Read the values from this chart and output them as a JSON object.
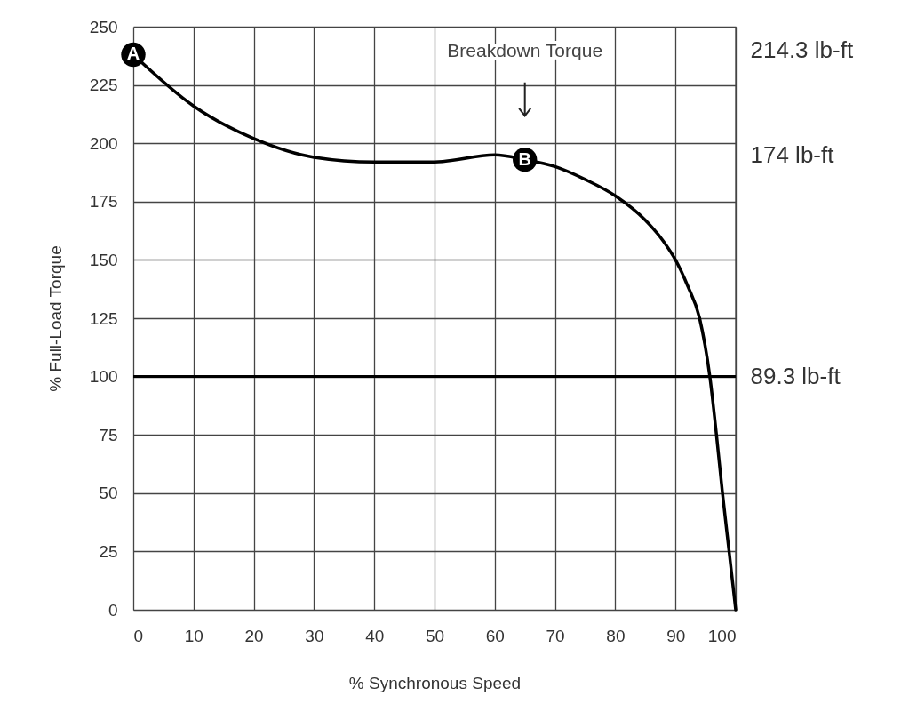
{
  "chart_data": {
    "type": "line",
    "xlabel": "% Synchronous Speed",
    "ylabel": "% Full-Load Torque",
    "x": [
      0,
      10,
      20,
      30,
      40,
      50,
      60,
      65,
      70,
      75,
      80,
      85,
      88,
      90,
      92,
      94,
      95.7,
      96.8,
      97.8,
      98.9,
      100
    ],
    "series": [
      {
        "color": "#000000",
        "values": [
          238,
          216,
          202,
          194,
          192,
          192,
          195,
          193,
          190,
          184.5,
          177.5,
          167,
          158,
          150,
          139,
          125,
          100,
          75,
          50,
          25,
          0
        ]
      }
    ],
    "xlim": [
      0,
      100
    ],
    "ylim": [
      0,
      250
    ],
    "xticks": [
      0,
      10,
      20,
      30,
      40,
      50,
      60,
      70,
      80,
      90,
      100
    ],
    "yticks": [
      0,
      25,
      50,
      75,
      100,
      125,
      150,
      175,
      200,
      225,
      250
    ],
    "y2lim": [
      0,
      223.25
    ],
    "y2ticks": [
      {
        "value": 89.3,
        "label": "89.3 lb-ft"
      },
      {
        "value": 174,
        "label": "174 lb-ft"
      },
      {
        "value": 214.3,
        "label": "214.3 lb-ft"
      }
    ],
    "grid": true,
    "ref_lines": [
      {
        "axis": "y",
        "value": 100,
        "color": "#000000"
      }
    ],
    "annotations": [
      {
        "text": "A",
        "x": 0,
        "y": 238
      },
      {
        "text": "B",
        "x": 65,
        "y": 193
      },
      "Breakdown Torque"
    ]
  }
}
